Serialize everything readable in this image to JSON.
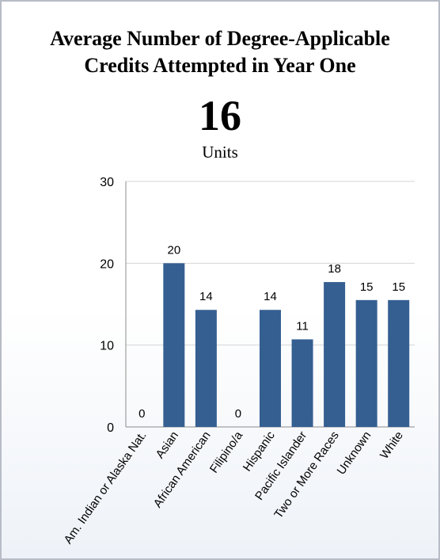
{
  "header": {
    "title_line1": "Average Number of Degree-Applicable",
    "title_line2": "Credits Attempted in Year One",
    "big_number": "16",
    "units_label": "Units"
  },
  "colors": {
    "bar": "#355f91",
    "grid": "#d4d4d4",
    "axis": "#8c8c8c",
    "text": "#000000"
  },
  "chart_data": {
    "type": "bar",
    "title": "Average Number of Degree-Applicable Credits Attempted in Year One",
    "xlabel": "",
    "ylabel": "",
    "ylim": [
      0,
      30
    ],
    "yticks": [
      0,
      10,
      20,
      30
    ],
    "grid": true,
    "legend": "none",
    "categories": [
      "Am. Indian or Alaska Nat.",
      "Asian",
      "African American",
      "Filipino/a",
      "Hispanic",
      "Pacific Islander",
      "Two or More Races",
      "Unknown",
      "White"
    ],
    "values": [
      0,
      20,
      14.3,
      0,
      14.3,
      10.7,
      17.7,
      15.5,
      15.5
    ],
    "data_labels": [
      "0",
      "20",
      "14",
      "0",
      "14",
      "11",
      "18",
      "15",
      "15"
    ]
  }
}
